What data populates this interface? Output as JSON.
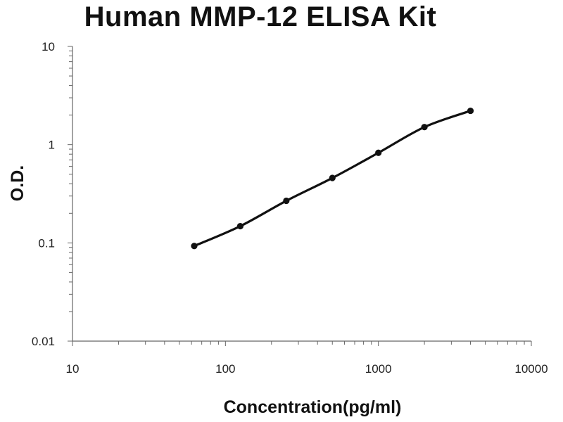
{
  "chart_data": {
    "type": "line",
    "title": "Human MMP-12 ELISA Kit",
    "xlabel": "Concentration(pg/ml)",
    "ylabel": "O.D.",
    "xscale": "log",
    "yscale": "log",
    "xlim": [
      10,
      10000
    ],
    "ylim": [
      0.01,
      10
    ],
    "xticks": [
      "10",
      "100",
      "1000",
      "10000"
    ],
    "yticks": [
      "0.01",
      "0.1",
      "1",
      "10"
    ],
    "grid": false,
    "legend": "none",
    "series": [
      {
        "x": [
          62.5,
          125,
          250,
          500,
          1000,
          2000,
          4000
        ],
        "y": [
          0.093,
          0.148,
          0.268,
          0.458,
          0.826,
          1.51,
          2.21
        ],
        "marker": "circle",
        "color": "#111111"
      }
    ]
  }
}
